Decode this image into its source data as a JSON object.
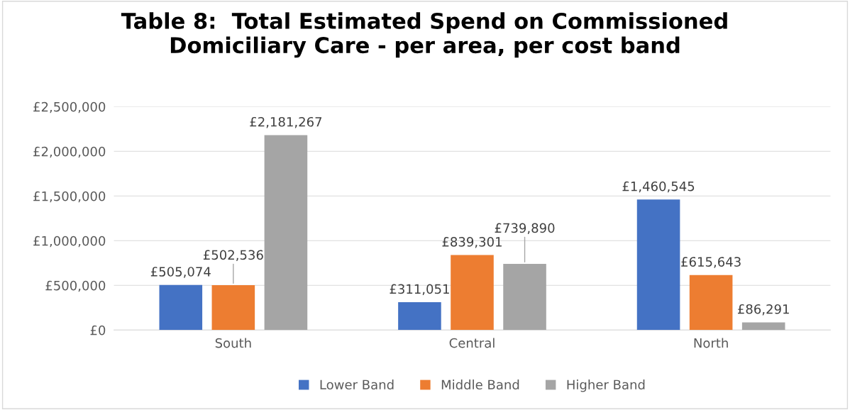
{
  "chart_data": {
    "type": "bar",
    "title": "Table 8:  Total Estimated Spend on Commissioned\nDomiciliary Care - per area, per cost band",
    "categories": [
      "South",
      "Central",
      "North"
    ],
    "series": [
      {
        "name": "Lower Band",
        "color": "#4472c4",
        "values": [
          505074,
          311051,
          1460545
        ],
        "value_labels": [
          "£505,074",
          "£311,051",
          "£1,460,545"
        ]
      },
      {
        "name": "Middle Band",
        "color": "#ed7d31",
        "values": [
          502536,
          839301,
          615643
        ],
        "value_labels": [
          "£502,536",
          "£839,301",
          "£615,643"
        ]
      },
      {
        "name": "Higher Band",
        "color": "#a5a5a5",
        "values": [
          2181267,
          739890,
          86291
        ],
        "value_labels": [
          "£2,181,267",
          "£739,890",
          "£86,291"
        ]
      }
    ],
    "ylim": [
      0,
      2500000
    ],
    "yticks": [
      {
        "value": 0,
        "label": "£0"
      },
      {
        "value": 500000,
        "label": "£500,000"
      },
      {
        "value": 1000000,
        "label": "£1,000,000"
      },
      {
        "value": 1500000,
        "label": "£1,500,000"
      },
      {
        "value": 2000000,
        "label": "£2,000,000"
      },
      {
        "value": 2500000,
        "label": "£2,500,000"
      }
    ],
    "grid": "y",
    "legend": "bottom"
  }
}
